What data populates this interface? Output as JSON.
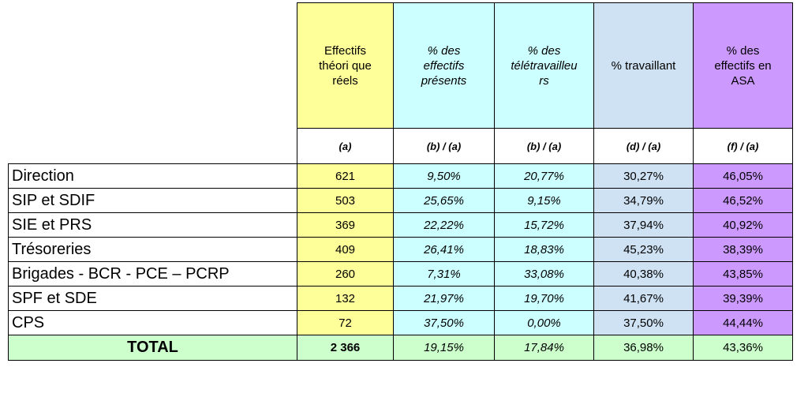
{
  "colors": {
    "col_a": "#ffff99",
    "col_b": "#ccffff",
    "col_c": "#ccffff",
    "col_d": "#cfe2f3",
    "col_f": "#cc99ff",
    "total_row": "#ccffcc"
  },
  "chart_data": {
    "type": "table",
    "columns": [
      {
        "header": "Effectifs\nthéori que\nréels",
        "formula": "(a)"
      },
      {
        "header": "% des\neffectifs\nprésents",
        "formula": "(b) / (a)"
      },
      {
        "header": "% des\ntélétravailleu\nrs",
        "formula": "(b) / (a)"
      },
      {
        "header": "% travaillant",
        "formula": "(d) / (a)"
      },
      {
        "header": "% des\neffectifs en\nASA",
        "formula": "(f) / (a)"
      }
    ],
    "rows": [
      {
        "label": "Direction",
        "values": [
          "621",
          "9,50%",
          "20,77%",
          "30,27%",
          "46,05%"
        ]
      },
      {
        "label": "SIP et SDIF",
        "values": [
          "503",
          "25,65%",
          "9,15%",
          "34,79%",
          "46,52%"
        ]
      },
      {
        "label": "SIE et PRS",
        "values": [
          "369",
          "22,22%",
          "15,72%",
          "37,94%",
          "40,92%"
        ]
      },
      {
        "label": "Trésoreries",
        "values": [
          "409",
          "26,41%",
          "18,83%",
          "45,23%",
          "38,39%"
        ]
      },
      {
        "label": "Brigades - BCR - PCE – PCRP",
        "values": [
          "260",
          "7,31%",
          "33,08%",
          "40,38%",
          "43,85%"
        ]
      },
      {
        "label": "SPF et SDE",
        "values": [
          "132",
          "21,97%",
          "19,70%",
          "41,67%",
          "39,39%"
        ]
      },
      {
        "label": "CPS",
        "values": [
          "72",
          "37,50%",
          "0,00%",
          "37,50%",
          "44,44%"
        ]
      }
    ],
    "total": {
      "label": "TOTAL",
      "values": [
        "2 366",
        "19,15%",
        "17,84%",
        "36,98%",
        "43,36%"
      ]
    }
  }
}
